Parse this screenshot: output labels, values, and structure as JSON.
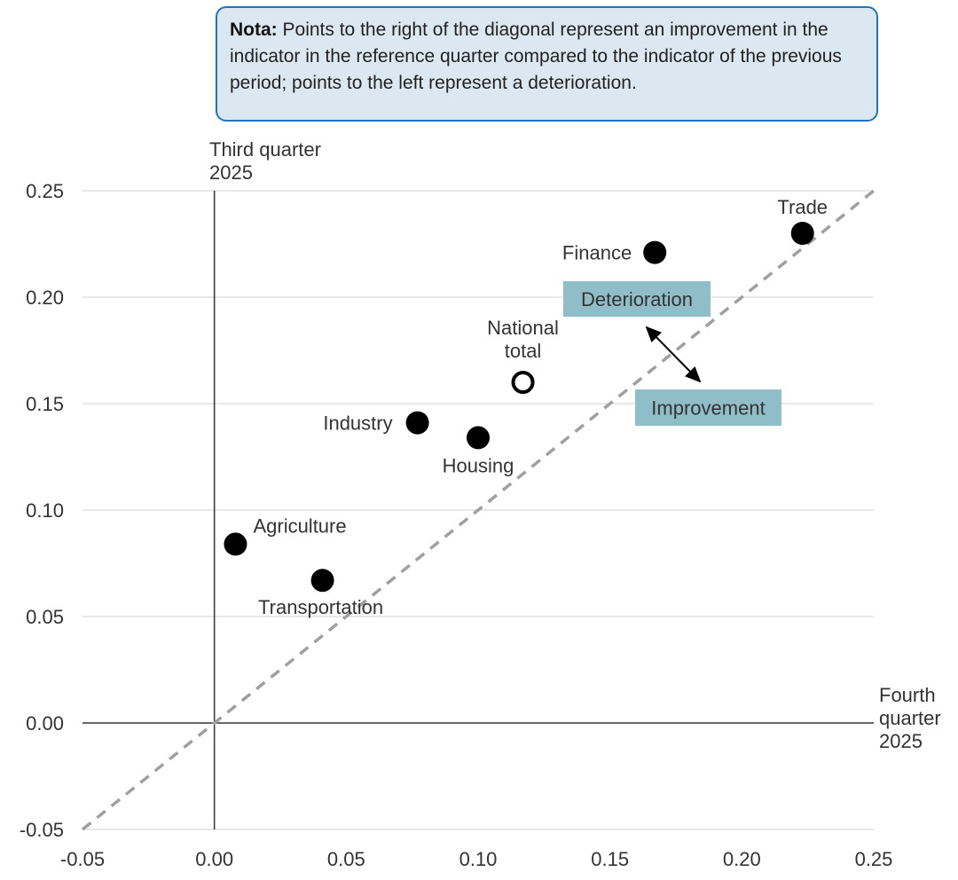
{
  "note": {
    "label": "Nota:",
    "text": "Points to the right of the diagonal represent an improvement in the indicator in the reference quarter compared to the indicator of the previous period; points to the left represent a deterioration."
  },
  "chart_data": {
    "type": "scatter",
    "xlabel": "Fourth quarter 2025",
    "ylabel": "Third quarter 2025",
    "xlim": [
      -0.05,
      0.25
    ],
    "ylim": [
      -0.05,
      0.25
    ],
    "x_ticks": [
      "-0.05",
      "0.00",
      "0.05",
      "0.10",
      "0.15",
      "0.20",
      "0.25"
    ],
    "y_ticks": [
      "-0.05",
      "0.00",
      "0.05",
      "0.10",
      "0.15",
      "0.20",
      "0.25"
    ],
    "grid": "horizontal",
    "reference_line": "diagonal y = x (dashed)",
    "points": [
      {
        "label": "Trade",
        "x": 0.223,
        "y": 0.23,
        "fill": "#000000"
      },
      {
        "label": "Finance",
        "x": 0.167,
        "y": 0.221,
        "fill": "#000000"
      },
      {
        "label": "National total",
        "x": 0.117,
        "y": 0.16,
        "fill": "#ffffff"
      },
      {
        "label": "Industry",
        "x": 0.077,
        "y": 0.141,
        "fill": "#000000"
      },
      {
        "label": "Housing",
        "x": 0.1,
        "y": 0.134,
        "fill": "#000000"
      },
      {
        "label": "Agriculture",
        "x": 0.008,
        "y": 0.084,
        "fill": "#000000"
      },
      {
        "label": "Transportation",
        "x": 0.041,
        "y": 0.067,
        "fill": "#000000"
      }
    ],
    "annotations": {
      "deterioration": "Deterioration",
      "improvement": "Improvement"
    },
    "colors": {
      "annotation_box": "#8fbec8",
      "diagonal": "#a0a0a0",
      "grid": "#d0d0d0",
      "note_border": "#1f74bb",
      "note_bg": "#dbe8f1"
    }
  }
}
